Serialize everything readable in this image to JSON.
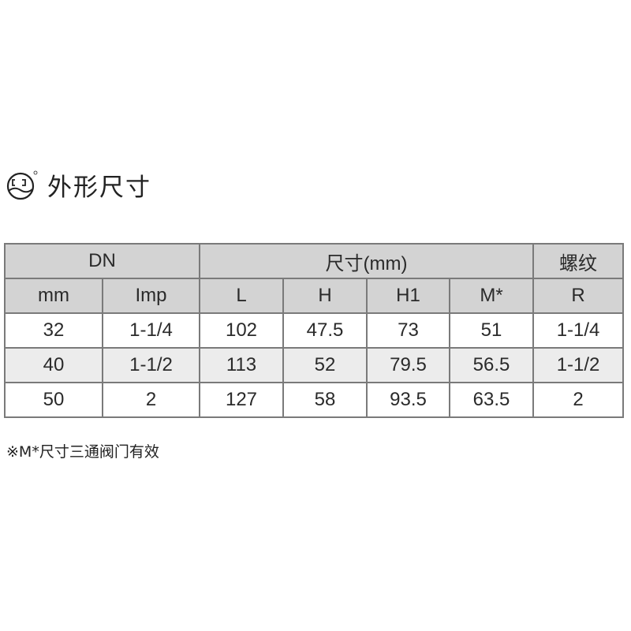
{
  "section": {
    "title": "外形尺寸",
    "logo": "CJ"
  },
  "table": {
    "group_headers": [
      "DN",
      "尺寸(mm)",
      "螺纹"
    ],
    "sub_headers": [
      "mm",
      "Imp",
      "L",
      "H",
      "H1",
      "M*",
      "R"
    ],
    "rows": [
      [
        "32",
        "1-1/4",
        "102",
        "47.5",
        "73",
        "51",
        "1-1/4"
      ],
      [
        "40",
        "1-1/2",
        "113",
        "52",
        "79.5",
        "56.5",
        "1-1/2"
      ],
      [
        "50",
        "2",
        "127",
        "58",
        "93.5",
        "63.5",
        "2"
      ]
    ]
  },
  "footnote": "※M*尺寸三通阀门有效"
}
